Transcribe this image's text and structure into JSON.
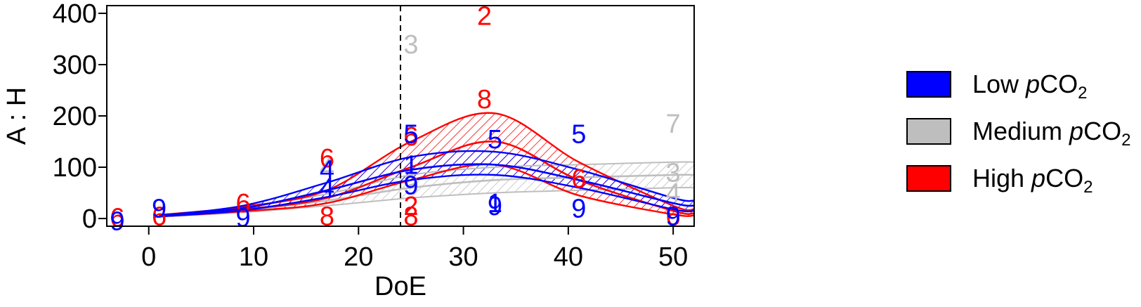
{
  "chart_data": {
    "type": "line",
    "xlabel": "DoE",
    "ylabel": "A : H",
    "xlim": [
      -4,
      52
    ],
    "ylim": [
      -15,
      415
    ],
    "xticks": [
      0,
      10,
      20,
      30,
      40,
      50
    ],
    "yticks": [
      0,
      100,
      200,
      300,
      400
    ],
    "reference_line_x": 24,
    "grid": false,
    "legend_position": "right",
    "x": [
      1,
      9,
      17,
      25,
      33,
      41,
      50,
      52
    ],
    "series": [
      {
        "name": "High pCO2",
        "color": "#ff0000",
        "fill": "hatched",
        "mean": [
          5,
          18,
          40,
          100,
          150,
          75,
          15,
          10
        ],
        "lower": [
          4,
          14,
          30,
          75,
          105,
          45,
          8,
          6
        ],
        "upper": [
          7,
          23,
          55,
          150,
          205,
          110,
          25,
          18
        ],
        "points": [
          {
            "x": -3,
            "y": 2,
            "label": "6"
          },
          {
            "x": 1,
            "y": 5,
            "label": "6"
          },
          {
            "x": 9,
            "y": 30,
            "label": "6"
          },
          {
            "x": 17,
            "y": 118,
            "label": "6"
          },
          {
            "x": 17,
            "y": 5,
            "label": "8"
          },
          {
            "x": 25,
            "y": 160,
            "label": "6"
          },
          {
            "x": 25,
            "y": 25,
            "label": "2"
          },
          {
            "x": 25,
            "y": 5,
            "label": "8"
          },
          {
            "x": 32,
            "y": 395,
            "label": "2"
          },
          {
            "x": 32,
            "y": 233,
            "label": "8"
          },
          {
            "x": 41,
            "y": 78,
            "label": "6"
          },
          {
            "x": 50,
            "y": 5,
            "label": "6"
          }
        ]
      },
      {
        "name": "Medium pCO2",
        "color": "#bebebe",
        "fill": "hatched",
        "mean": [
          4,
          16,
          35,
          60,
          75,
          80,
          85,
          85
        ],
        "lower": [
          3,
          12,
          25,
          40,
          50,
          55,
          60,
          60
        ],
        "upper": [
          6,
          22,
          48,
          85,
          100,
          105,
          110,
          110
        ],
        "points": [
          {
            "x": 17,
            "y": 100,
            "label": "4"
          },
          {
            "x": 25,
            "y": 340,
            "label": "3"
          },
          {
            "x": 25,
            "y": 65,
            "label": "3"
          },
          {
            "x": 50,
            "y": 185,
            "label": "7"
          },
          {
            "x": 50,
            "y": 90,
            "label": "3"
          },
          {
            "x": 50,
            "y": 50,
            "label": "4"
          }
        ]
      },
      {
        "name": "Low pCO2",
        "color": "#0000ff",
        "fill": "hatched",
        "mean": [
          5,
          20,
          55,
          95,
          105,
          75,
          30,
          25
        ],
        "lower": [
          4,
          16,
          42,
          75,
          85,
          60,
          18,
          15
        ],
        "upper": [
          6,
          25,
          70,
          120,
          130,
          95,
          40,
          35
        ],
        "points": [
          {
            "x": -3,
            "y": -5,
            "label": "9"
          },
          {
            "x": 1,
            "y": 20,
            "label": "9"
          },
          {
            "x": 9,
            "y": 2,
            "label": "9"
          },
          {
            "x": 17,
            "y": 95,
            "label": "4"
          },
          {
            "x": 17,
            "y": 60,
            "label": "4"
          },
          {
            "x": 25,
            "y": 165,
            "label": "5"
          },
          {
            "x": 25,
            "y": 105,
            "label": "1"
          },
          {
            "x": 25,
            "y": 65,
            "label": "9"
          },
          {
            "x": 33,
            "y": 155,
            "label": "5"
          },
          {
            "x": 33,
            "y": 30,
            "label": "1"
          },
          {
            "x": 33,
            "y": 25,
            "label": "9"
          },
          {
            "x": 41,
            "y": 165,
            "label": "5"
          },
          {
            "x": 41,
            "y": 20,
            "label": "9"
          },
          {
            "x": 50,
            "y": 5,
            "label": "9"
          }
        ]
      }
    ]
  },
  "legend": {
    "items": [
      {
        "prefix": "Low ",
        "italic": "p",
        "base": "CO",
        "sub": "2",
        "color": "#0000ff"
      },
      {
        "prefix": "Medium ",
        "italic": "p",
        "base": "CO",
        "sub": "2",
        "color": "#bebebe"
      },
      {
        "prefix": "High ",
        "italic": "p",
        "base": "CO",
        "sub": "2",
        "color": "#ff0000"
      }
    ]
  }
}
